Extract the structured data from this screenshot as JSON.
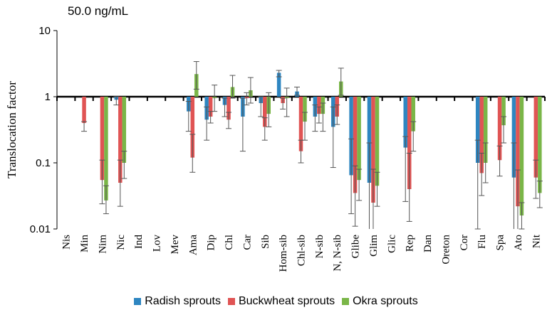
{
  "chart_data": {
    "type": "bar",
    "annotation": "50.0 ng/mL",
    "ylabel": "Translocation factor",
    "xlabel": "",
    "yscale": "log",
    "ylim": [
      0.01,
      10
    ],
    "baseline": 1,
    "yticks": [
      "0.01",
      "0.1",
      "1",
      "10"
    ],
    "legend_position": "bottom",
    "categories": [
      "Nis",
      "Min",
      "Nim",
      "Nic",
      "Ind",
      "Lov",
      "Mev",
      "Ama",
      "Dip",
      "Chl",
      "Car",
      "Sib",
      "Hom-sib",
      "Chl-sib",
      "N-sib",
      "N, N-sib",
      "Glibe",
      "Glim",
      "Glic",
      "Rep",
      "Dan",
      "Oreton",
      "Cor",
      "Flu",
      "Spa",
      "Ato",
      "Nit"
    ],
    "series": [
      {
        "name": "Radish sprouts",
        "color": "#2e86c1",
        "values": [
          null,
          null,
          null,
          0.9,
          null,
          null,
          null,
          0.6,
          0.45,
          0.75,
          0.5,
          0.8,
          2.3,
          1.2,
          0.5,
          0.35,
          0.065,
          0.05,
          null,
          0.17,
          null,
          null,
          null,
          0.1,
          null,
          0.06,
          null
        ],
        "err_low": [
          null,
          null,
          null,
          0.75,
          null,
          null,
          null,
          0.3,
          0.22,
          0.5,
          0.15,
          0.5,
          2.0,
          1.05,
          0.3,
          0.085,
          0.017,
          0.009,
          null,
          0.026,
          null,
          null,
          null,
          0.01,
          null,
          0.008,
          null
        ],
        "err_high": [
          null,
          null,
          null,
          1.0,
          null,
          null,
          null,
          0.85,
          0.7,
          0.95,
          0.95,
          1.0,
          2.5,
          1.4,
          0.75,
          0.7,
          0.23,
          0.2,
          null,
          0.25,
          null,
          null,
          null,
          0.22,
          null,
          0.2,
          null
        ]
      },
      {
        "name": "Buckwheat sprouts",
        "color": "#e05454",
        "values": [
          null,
          0.4,
          0.055,
          0.05,
          null,
          null,
          null,
          0.12,
          0.5,
          0.45,
          0.95,
          0.35,
          0.8,
          0.15,
          0.55,
          0.5,
          0.035,
          0.025,
          null,
          0.04,
          null,
          null,
          null,
          0.07,
          0.11,
          0.022,
          0.06
        ],
        "err_low": [
          null,
          0.3,
          0.024,
          0.022,
          null,
          null,
          null,
          0.072,
          0.4,
          0.33,
          0.75,
          0.22,
          0.65,
          0.1,
          0.4,
          0.38,
          0.011,
          0.009,
          null,
          0.013,
          null,
          null,
          null,
          0.032,
          0.063,
          0.008,
          0.029
        ],
        "err_high": [
          null,
          0.42,
          0.11,
          0.11,
          null,
          null,
          null,
          0.27,
          0.6,
          0.58,
          1.15,
          0.48,
          0.95,
          0.22,
          0.7,
          0.75,
          0.09,
          0.08,
          null,
          0.14,
          null,
          null,
          null,
          0.14,
          0.18,
          0.078,
          0.11
        ]
      },
      {
        "name": "Okra sprouts",
        "color": "#7ab648",
        "values": [
          null,
          null,
          0.027,
          0.1,
          null,
          null,
          null,
          2.2,
          0.95,
          1.4,
          1.25,
          0.55,
          0.95,
          0.42,
          0.55,
          1.7,
          0.055,
          0.045,
          null,
          0.3,
          null,
          null,
          null,
          0.1,
          0.37,
          0.016,
          0.035
        ],
        "err_low": [
          null,
          null,
          0.017,
          0.058,
          null,
          null,
          null,
          1.3,
          0.6,
          0.95,
          0.8,
          0.35,
          0.5,
          0.22,
          0.3,
          1.05,
          0.027,
          0.022,
          null,
          0.15,
          null,
          null,
          null,
          0.05,
          0.2,
          0.01,
          0.021
        ],
        "err_high": [
          null,
          null,
          0.045,
          0.15,
          null,
          null,
          null,
          3.4,
          1.5,
          2.1,
          1.95,
          1.15,
          1.35,
          0.58,
          0.8,
          2.7,
          0.08,
          0.072,
          null,
          0.42,
          null,
          null,
          null,
          0.2,
          0.5,
          0.025,
          0.053
        ]
      }
    ]
  }
}
